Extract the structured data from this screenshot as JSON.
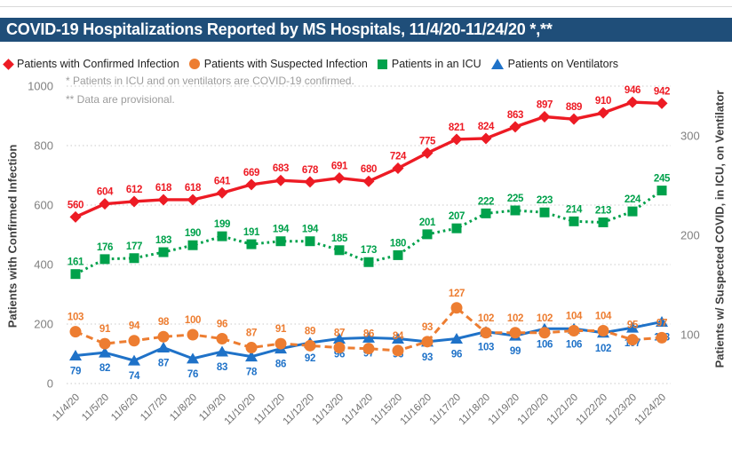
{
  "title": "COVID-19 Hospitalizations Reported by MS Hospitals, 11/4/20-11/24/20 *,**",
  "title_bar_color": "#1F4E79",
  "notes": [
    "* Patients in ICU and on ventilators are COVID-19 confirmed.",
    "** Data are provisional."
  ],
  "left_axis": {
    "title": "Patients with Confirmed Infection",
    "ticks": [
      0,
      200,
      400,
      600,
      800,
      1000
    ],
    "range": [
      0,
      1000
    ]
  },
  "right_axis": {
    "title": "Patients w/ Suspected COVID, in ICU, on Ventilator",
    "ticks": [
      100,
      200,
      300
    ]
  },
  "chart_data": {
    "type": "line",
    "x": [
      "11/4/20",
      "11/5/20",
      "11/6/20",
      "11/7/20",
      "11/8/20",
      "11/9/20",
      "11/10/20",
      "11/11/20",
      "11/12/20",
      "11/13/20",
      "11/14/20",
      "11/15/20",
      "11/16/20",
      "11/17/20",
      "11/18/20",
      "11/19/20",
      "11/20/20",
      "11/21/20",
      "11/22/20",
      "11/23/20",
      "11/24/20"
    ],
    "grid": "dotted-horizontal",
    "legend_position": "top",
    "series": [
      {
        "name": "Patients with Confirmed Infection",
        "axis": "left",
        "color": "#ED1B24",
        "marker": "diamond",
        "line": "solid",
        "label_side": "above",
        "values": [
          560,
          604,
          612,
          618,
          618,
          641,
          669,
          683,
          678,
          691,
          680,
          724,
          775,
          821,
          824,
          863,
          897,
          889,
          910,
          946,
          942
        ]
      },
      {
        "name": "Patients with Suspected Infection",
        "axis": "right",
        "color": "#ED7D31",
        "marker": "circle",
        "line": "dashed",
        "label_side": "above",
        "values": [
          103,
          91,
          94,
          98,
          100,
          96,
          87,
          91,
          89,
          87,
          86,
          84,
          93,
          127,
          102,
          102,
          102,
          104,
          104,
          95,
          97
        ]
      },
      {
        "name": "Patients in an ICU",
        "axis": "right",
        "color": "#00A14B",
        "marker": "square",
        "line": "dotted",
        "label_side": "above",
        "values": [
          161,
          176,
          177,
          183,
          190,
          199,
          191,
          194,
          194,
          185,
          173,
          180,
          201,
          207,
          222,
          225,
          223,
          214,
          213,
          224,
          245
        ]
      },
      {
        "name": "Patients on Ventilators",
        "axis": "right",
        "color": "#1F72C8",
        "marker": "triangle",
        "line": "solid",
        "label_side": "below",
        "values": [
          79,
          82,
          74,
          87,
          76,
          83,
          78,
          86,
          92,
          96,
          97,
          96,
          93,
          96,
          103,
          99,
          106,
          106,
          102,
          107,
          113
        ]
      }
    ]
  }
}
